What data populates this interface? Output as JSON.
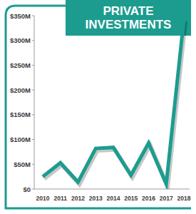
{
  "chart_data": {
    "type": "line",
    "title": "PRIVATE INVESTMENTS",
    "categories": [
      "2010",
      "2011",
      "2012",
      "2013",
      "2014",
      "2015",
      "2016",
      "2017",
      "2018"
    ],
    "values": [
      25,
      53,
      14,
      82,
      84,
      28,
      93,
      10,
      343
    ],
    "color": "#1c9c8f",
    "ylim": [
      0,
      350
    ],
    "yticks": [
      {
        "value": 0,
        "label": "$0"
      },
      {
        "value": 50,
        "label": "$50M"
      },
      {
        "value": 100,
        "label": "$100M"
      },
      {
        "value": 150,
        "label": "$150M"
      },
      {
        "value": 200,
        "label": "$200M"
      },
      {
        "value": 250,
        "label": "$250M"
      },
      {
        "value": 300,
        "label": "$300M"
      },
      {
        "value": 350,
        "label": "$350M"
      }
    ],
    "grid": false
  }
}
